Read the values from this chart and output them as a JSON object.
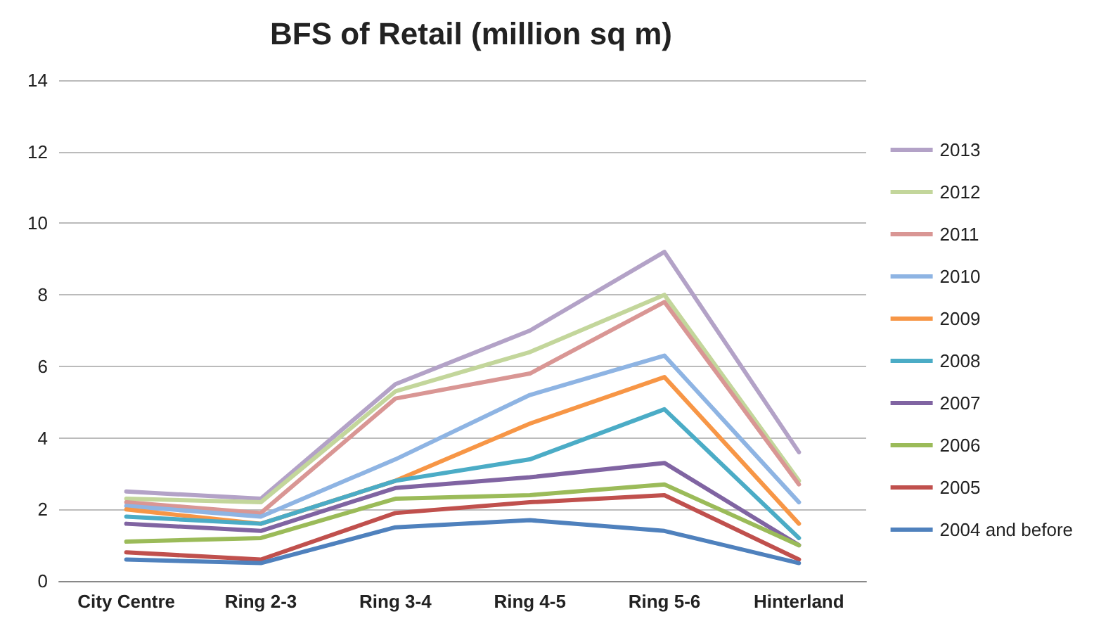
{
  "chart_data": {
    "type": "line",
    "title": "BFS of Retail (million sq m)",
    "categories": [
      "City Centre",
      "Ring 2-3",
      "Ring 3-4",
      "Ring 4-5",
      "Ring 5-6",
      "Hinterland"
    ],
    "series": [
      {
        "name": "2013",
        "color": "#b3a2c7",
        "values": [
          2.5,
          2.3,
          5.5,
          7.0,
          9.2,
          3.6
        ]
      },
      {
        "name": "2012",
        "color": "#c3d69b",
        "values": [
          2.3,
          2.2,
          5.3,
          6.4,
          8.0,
          2.8
        ]
      },
      {
        "name": "2011",
        "color": "#d99694",
        "values": [
          2.2,
          1.9,
          5.1,
          5.8,
          7.8,
          2.7
        ]
      },
      {
        "name": "2010",
        "color": "#8eb4e3",
        "values": [
          2.1,
          1.8,
          3.4,
          5.2,
          6.3,
          2.2
        ]
      },
      {
        "name": "2009",
        "color": "#f79646",
        "values": [
          2.0,
          1.6,
          2.8,
          4.4,
          5.7,
          1.6
        ]
      },
      {
        "name": "2008",
        "color": "#4bacc6",
        "values": [
          1.8,
          1.6,
          2.8,
          3.4,
          4.8,
          1.2
        ]
      },
      {
        "name": "2007",
        "color": "#8064a2",
        "values": [
          1.6,
          1.4,
          2.6,
          2.9,
          3.3,
          1.0
        ]
      },
      {
        "name": "2006",
        "color": "#9bbb59",
        "values": [
          1.1,
          1.2,
          2.3,
          2.4,
          2.7,
          1.0
        ]
      },
      {
        "name": "2005",
        "color": "#c0504d",
        "values": [
          0.8,
          0.6,
          1.9,
          2.2,
          2.4,
          0.6
        ]
      },
      {
        "name": "2004 and before",
        "color": "#4f81bd",
        "values": [
          0.6,
          0.5,
          1.5,
          1.7,
          1.4,
          0.5
        ]
      }
    ],
    "ylim": [
      0,
      14
    ],
    "yticks": [
      0,
      2,
      4,
      6,
      8,
      10,
      12,
      14
    ],
    "grid": "y",
    "legend": "right",
    "marker": "none",
    "line_style": "solid"
  }
}
